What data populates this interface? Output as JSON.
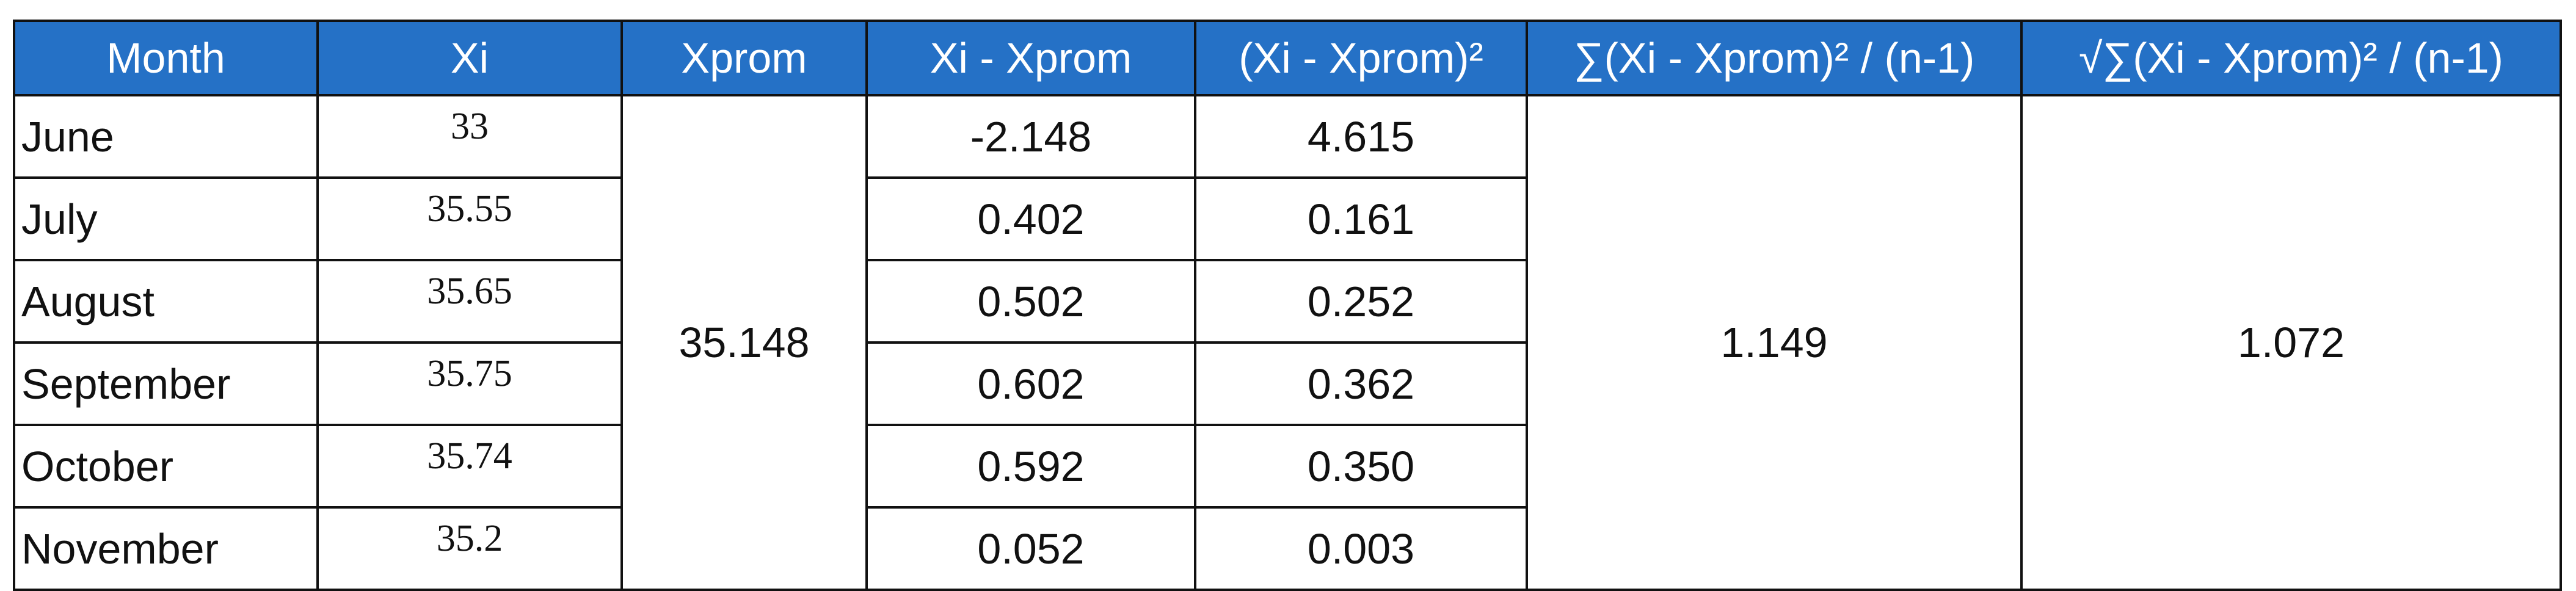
{
  "table": {
    "header": [
      "Month",
      "Xi",
      "Xprom",
      "Xi - Xprom",
      "(Xi - Xprom)²",
      "∑(Xi - Xprom)² / (n-1)",
      "√∑(Xi - Xprom)² / (n-1)"
    ],
    "rows": [
      [
        "June",
        "33",
        "-2.148",
        "4.615"
      ],
      [
        "July",
        "35.55",
        "0.402",
        "0.161"
      ],
      [
        "August",
        "35.65",
        "0.502",
        "0.252"
      ],
      [
        "September",
        "35.75",
        "0.602",
        "0.362"
      ],
      [
        "October",
        "35.74",
        "0.592",
        "0.350"
      ],
      [
        "November",
        "35.2",
        "0.052",
        "0.003"
      ]
    ],
    "xprom": "35.148",
    "variance": "1.149",
    "std_dev": "1.072"
  }
}
